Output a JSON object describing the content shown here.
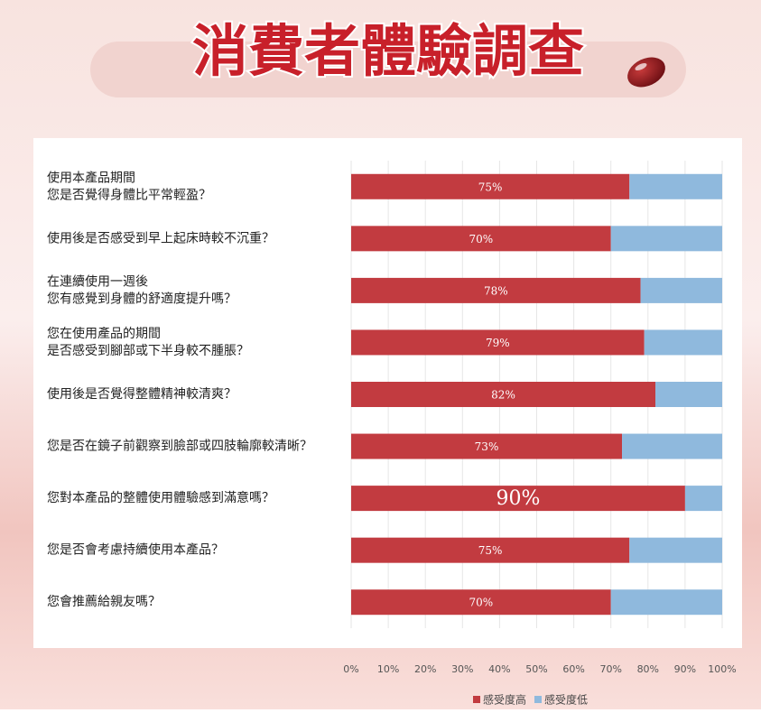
{
  "chart_data": {
    "type": "stacked_barh",
    "title": "消費者體驗調查",
    "categories": [
      [
        "使用本產品期間",
        "您是否覺得身體比平常輕盈？"
      ],
      [
        "使用後是否感受到早上起床時較不沉重？"
      ],
      [
        "在連續使用一週後",
        "您有感覺到身體的舒適度提升嗎？"
      ],
      [
        "您在使用產品的期間",
        "是否感受到腳部或下半身較不腫脹？"
      ],
      [
        "使用後是否覺得整體精神較清爽？"
      ],
      [
        "您是否在鏡子前觀察到臉部或四肢輪廓較清晰？"
      ],
      [
        "您對本產品的整體使用體驗感到滿意嗎？"
      ],
      [
        "您是否會考慮持續使用本產品？"
      ],
      [
        "您會推薦給親友嗎？"
      ]
    ],
    "series": [
      {
        "name": "感受度高",
        "color": "#c23b40",
        "values": [
          75,
          70,
          78,
          79,
          82,
          73,
          90,
          75,
          70
        ],
        "value_labels": [
          "75%",
          "70%",
          "78%",
          "79%",
          "82%",
          "73%",
          "90%",
          "75%",
          "70%"
        ]
      },
      {
        "name": "感受度低",
        "color": "#8fb9dd",
        "values": [
          25,
          30,
          22,
          21,
          18,
          27,
          10,
          25,
          30
        ]
      }
    ],
    "xlim": [
      0,
      100
    ],
    "xticks": [
      {
        "value": 0,
        "label": "0%"
      },
      {
        "value": 10,
        "label": "10%"
      },
      {
        "value": 20,
        "label": "20%"
      },
      {
        "value": 30,
        "label": "30%"
      },
      {
        "value": 40,
        "label": "40%"
      },
      {
        "value": 50,
        "label": "50%"
      },
      {
        "value": 60,
        "label": "60%"
      },
      {
        "value": 70,
        "label": "70%"
      },
      {
        "value": 80,
        "label": "80%"
      },
      {
        "value": 90,
        "label": "90%"
      },
      {
        "value": 100,
        "label": "100%"
      }
    ],
    "grid": true,
    "legend": "bottom"
  }
}
